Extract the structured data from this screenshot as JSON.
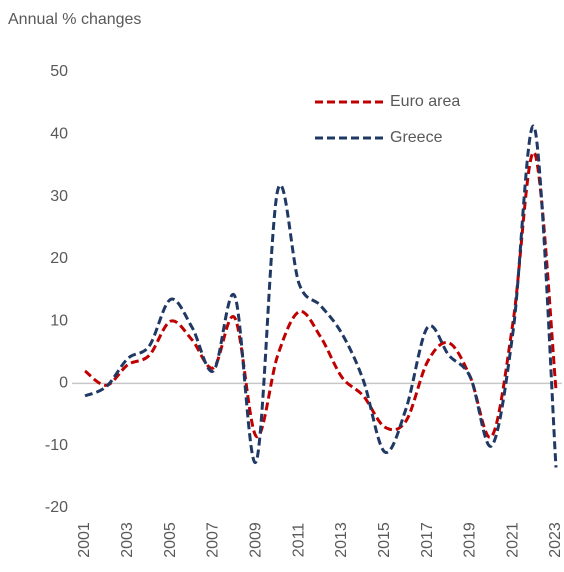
{
  "chart_data": {
    "type": "line",
    "ylabel": "Annual % changes",
    "x": [
      2001,
      2002,
      2003,
      2004,
      2005,
      2006,
      2007,
      2008,
      2009,
      2010,
      2011,
      2012,
      2013,
      2014,
      2015,
      2016,
      2017,
      2018,
      2019,
      2020,
      2021,
      2022,
      2023
    ],
    "xlim": [
      2001,
      2023
    ],
    "xticks": [
      2001,
      2003,
      2005,
      2007,
      2009,
      2011,
      2013,
      2015,
      2017,
      2019,
      2021,
      2023
    ],
    "ylim": [
      -20,
      50
    ],
    "yticks": [
      -20,
      -10,
      0,
      10,
      20,
      30,
      40,
      50
    ],
    "grid": false,
    "legend": "top",
    "series": [
      {
        "name": "Euro area",
        "color": "#c00000",
        "values": [
          2,
          -0.3,
          3,
          4.5,
          10,
          7,
          2.5,
          10.5,
          -8.5,
          4.5,
          11.5,
          7.5,
          1,
          -2,
          -7,
          -6,
          3.5,
          6.5,
          1,
          -8.5,
          10,
          37,
          -1
        ]
      },
      {
        "name": "Greece",
        "color": "#1f3864",
        "values": [
          -2,
          -0.5,
          4,
          6,
          13.5,
          9,
          2,
          14,
          -12.5,
          31,
          16,
          12.5,
          8,
          0.5,
          -11,
          -4,
          9,
          4.5,
          1,
          -10,
          8.5,
          41,
          -13.5
        ]
      }
    ]
  }
}
